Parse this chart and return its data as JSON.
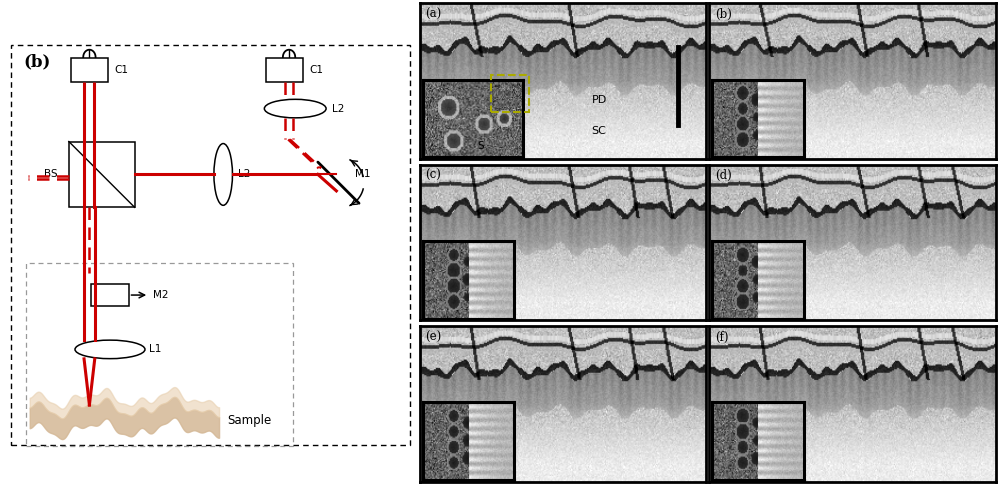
{
  "fig_width": 10.04,
  "fig_height": 4.84,
  "bg_color": "#ffffff",
  "dashed_border_color": "#444444",
  "gray_dashed_color": "#888888",
  "red_solid": "#cc0000",
  "red_dashed": "#cc0000",
  "panel_label_left": "(b)",
  "panel_labels_right": [
    "(a)",
    "(b)",
    "(c)",
    "(d)",
    "(e)",
    "(f)"
  ],
  "sc_label": "SC",
  "pd_label": "PD",
  "s_label": "S",
  "sample_label": "Sample",
  "bs_label": "BS",
  "c1_label_left": "C1",
  "c1_label_right": "C1",
  "l1_label": "L1",
  "l2_label_center": "L2",
  "l2_label_right": "L2",
  "m1_label": "M1",
  "m2_label": "M2"
}
